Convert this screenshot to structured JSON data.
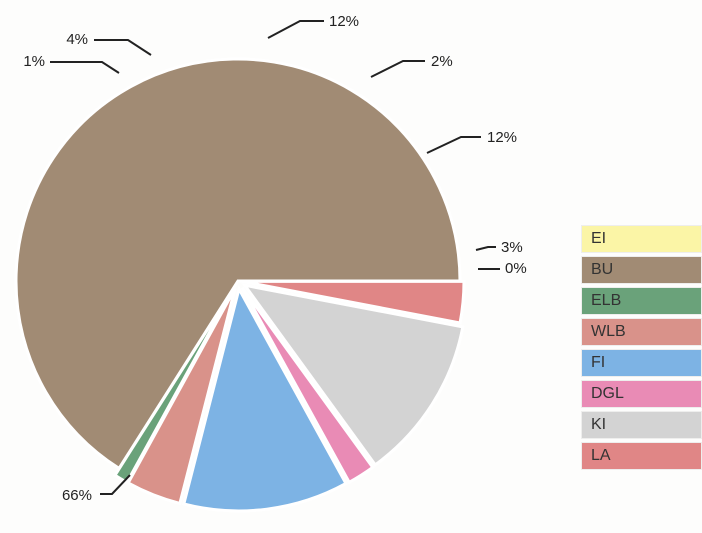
{
  "chart_data": {
    "type": "pie",
    "title": "",
    "slices": [
      {
        "label": "EI",
        "value": 0,
        "display": "0%",
        "color": "#fbf5a6"
      },
      {
        "label": "BU",
        "value": 66,
        "display": "66%",
        "color": "#a18b74"
      },
      {
        "label": "ELB",
        "value": 1,
        "display": "1%",
        "color": "#6aa27a"
      },
      {
        "label": "WLB",
        "value": 4,
        "display": "4%",
        "color": "#d9928a"
      },
      {
        "label": "FI",
        "value": 12,
        "display": "12%",
        "color": "#7db3e4"
      },
      {
        "label": "DGL",
        "value": 2,
        "display": "2%",
        "color": "#e98bb5"
      },
      {
        "label": "KI",
        "value": 12,
        "display": "12%",
        "color": "#d3d3d3"
      },
      {
        "label": "LA",
        "value": 3,
        "display": "3%",
        "color": "#e08686"
      }
    ],
    "legend_position": "right"
  }
}
